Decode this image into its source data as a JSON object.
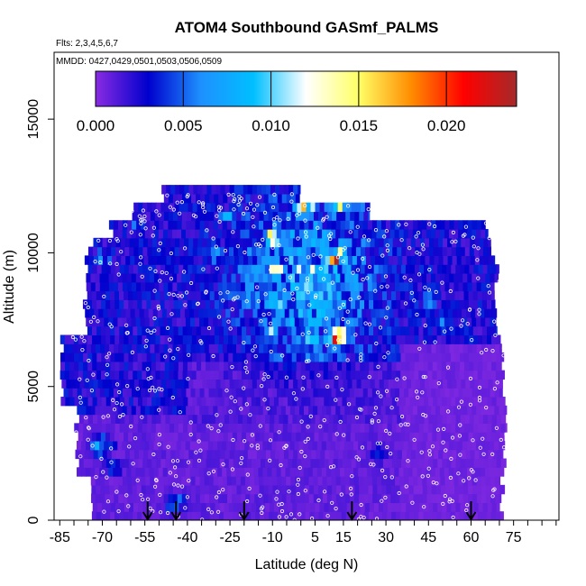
{
  "chart_data": {
    "type": "heatmap",
    "title": "ATOM4 Southbound GASmf_PALMS",
    "flights_label": "Flts: 2,3,4,5,6,7",
    "dates_label": "MMDD: 0427,0429,0501,0503,0506,0509",
    "xlabel": "Latitude (deg N)",
    "ylabel": "Altitude (m)",
    "xlim": [
      -87,
      91
    ],
    "ylim": [
      0,
      17500
    ],
    "x_ticks": [
      -85,
      -70,
      -55,
      -40,
      -25,
      -10,
      5,
      15,
      30,
      45,
      60,
      75
    ],
    "x_tick_labels": [
      "-85",
      "-70",
      "-55",
      "-40",
      "-25",
      "-10",
      "5",
      "15",
      "30",
      "45",
      "60",
      "75"
    ],
    "y_ticks": [
      0,
      5000,
      10000,
      15000
    ],
    "y_tick_labels": [
      "0",
      "5000",
      "10000",
      "15000"
    ],
    "colorbar": {
      "range": [
        0,
        0.024
      ],
      "ticks": [
        0.0,
        0.005,
        0.01,
        0.015,
        0.02
      ],
      "tick_labels": [
        "0.000",
        "0.005",
        "0.010",
        "0.015",
        "0.020"
      ],
      "colors": [
        "#8a2be2",
        "#0000cd",
        "#1e90ff",
        "#00bfff",
        "#ffffff",
        "#ffff66",
        "#ff8c00",
        "#ff0000",
        "#a52a2a"
      ]
    },
    "arrow_latitudes": [
      -54,
      -44,
      -20,
      18,
      60
    ],
    "hotspots": [
      {
        "lat": 2,
        "alt": 11800,
        "value": 0.016
      },
      {
        "lat": 13,
        "alt": 11800,
        "value": 0.012
      },
      {
        "lat": 20,
        "alt": 11800,
        "value": 0.005
      },
      {
        "lat": -10,
        "alt": 10600,
        "value": 0.012
      },
      {
        "lat": -8,
        "alt": 9400,
        "value": 0.013
      },
      {
        "lat": 2,
        "alt": 9400,
        "value": 0.012
      },
      {
        "lat": 12,
        "alt": 9800,
        "value": 0.022
      },
      {
        "lat": 6,
        "alt": 10400,
        "value": 0.008
      },
      {
        "lat": 13,
        "alt": 6800,
        "value": 0.023
      },
      {
        "lat": 5,
        "alt": 6800,
        "value": 0.012
      },
      {
        "lat": -10,
        "alt": 7000,
        "value": 0.008
      },
      {
        "lat": -8,
        "alt": 8200,
        "value": 0.009
      },
      {
        "lat": -70,
        "alt": 9800,
        "value": 0.006
      },
      {
        "lat": -70,
        "alt": 2800,
        "value": 0.008
      },
      {
        "lat": -66,
        "alt": 2000,
        "value": 0.005
      },
      {
        "lat": -44,
        "alt": 600,
        "value": 0.006
      },
      {
        "lat": -58,
        "alt": 11000,
        "value": 0.004
      },
      {
        "lat": 45,
        "alt": 8200,
        "value": 0.006
      },
      {
        "lat": 50,
        "alt": 7300,
        "value": 0.005
      },
      {
        "lat": -30,
        "alt": 10000,
        "value": 0.007
      },
      {
        "lat": -25,
        "alt": 11400,
        "value": 0.007
      },
      {
        "lat": 28,
        "alt": 2500,
        "value": 0.004
      }
    ]
  }
}
